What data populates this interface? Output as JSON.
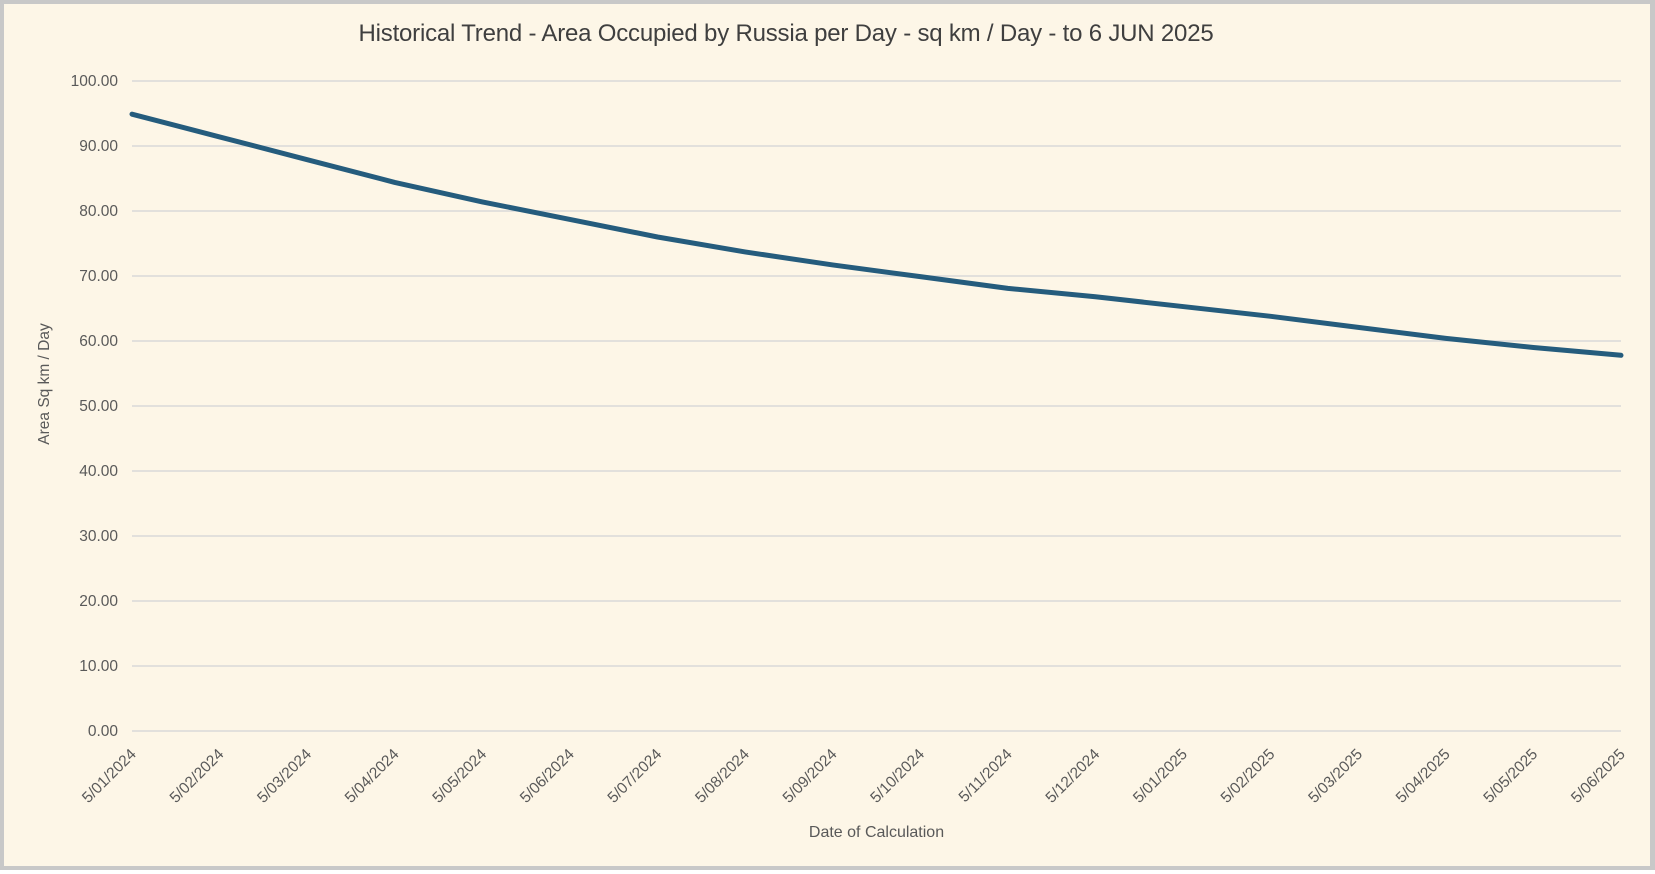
{
  "window": {
    "background": "#FDF6E7",
    "border_color": "#C8C8C8"
  },
  "chart_data": {
    "type": "line",
    "title": "Historical Trend - Area Occupied by Russia per Day - sq km / Day - to 6 JUN 2025",
    "xlabel": "Date of Calculation",
    "ylabel": "Area Sq km / Day",
    "categories": [
      "5/01/2024",
      "5/02/2024",
      "5/03/2024",
      "5/04/2024",
      "5/05/2024",
      "5/06/2024",
      "5/07/2024",
      "5/08/2024",
      "5/09/2024",
      "5/10/2024",
      "5/11/2024",
      "5/12/2024",
      "5/01/2025",
      "5/02/2025",
      "5/03/2025",
      "5/04/2025",
      "5/05/2025",
      "5/06/2025"
    ],
    "values": [
      94.9,
      91.4,
      87.9,
      84.4,
      81.4,
      78.7,
      76.0,
      73.7,
      71.7,
      69.9,
      68.1,
      66.8,
      65.3,
      63.8,
      62.1,
      60.4,
      59.0,
      57.8
    ],
    "ylim": [
      0,
      100
    ],
    "ytick_step": 10,
    "ytick_decimals": 2,
    "grid": "horizontal",
    "legend_position": "none",
    "colors": {
      "line": "#255C7D",
      "grid": "#D9D9D9",
      "tick_text": "#595959",
      "title_text": "#3F3F3F"
    }
  }
}
